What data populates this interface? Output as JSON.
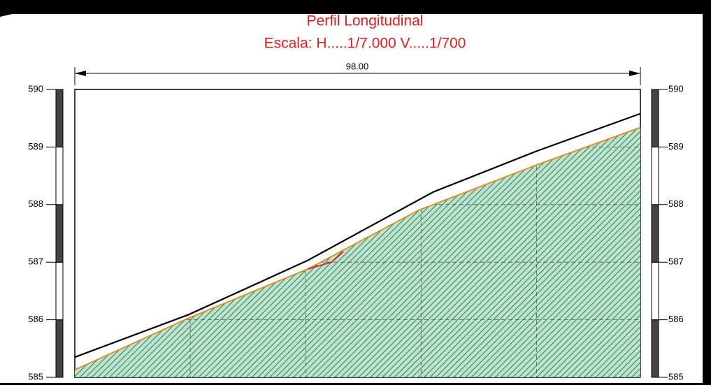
{
  "chart_data": {
    "type": "profile",
    "title": "Perfil Longitudinal",
    "subtitle": "Escala:  H.....1/7.000   V.....1/700",
    "dimension_label": "98.00",
    "xlim": [
      0,
      98
    ],
    "ylim": [
      585,
      590
    ],
    "xticks": [
      20,
      40,
      60,
      80
    ],
    "yticks": [
      585,
      586,
      587,
      588,
      589,
      590
    ],
    "grid": true,
    "series": [
      {
        "color": "#000000",
        "x": [
          0,
          19.75,
          40.34,
          62.14,
          80.31,
          98
        ],
        "values": [
          585.35,
          586.09,
          587.03,
          588.22,
          588.94,
          589.58
        ]
      },
      {
        "color": "#e08a1e",
        "fill": "#2e9a6a",
        "x": [
          0,
          19.75,
          40.34,
          59.71,
          62.14,
          80.31,
          98
        ],
        "values": [
          585.13,
          586.03,
          586.88,
          587.91,
          588.0,
          588.7,
          589.34
        ]
      },
      {
        "color": "#e02020",
        "x": [
          40.34,
          44.5,
          46.5
        ],
        "values": [
          586.88,
          587.0,
          587.18
        ]
      }
    ]
  }
}
